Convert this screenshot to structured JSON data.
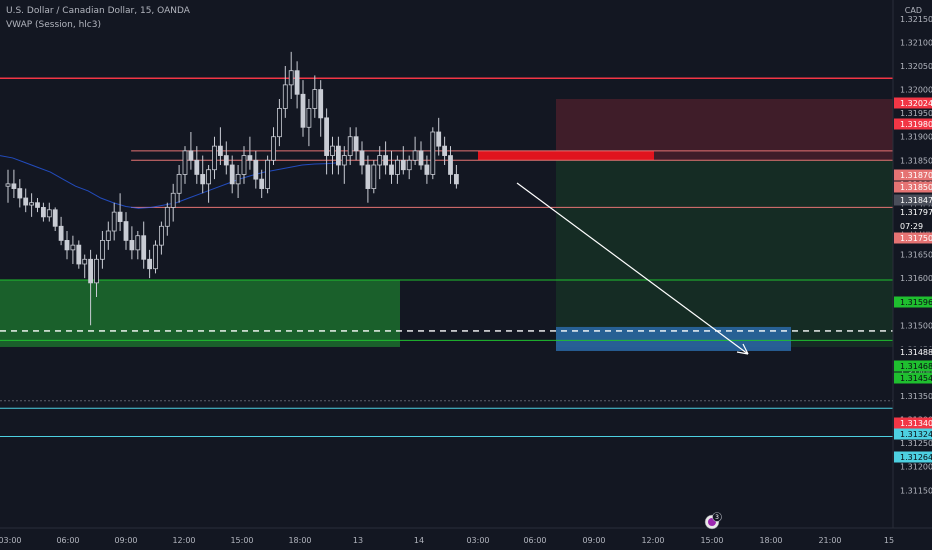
{
  "header": {
    "title": "U.S. Dollar / Canadian Dollar, 15, OANDA",
    "indicator": "VWAP (Session, hlc3)",
    "currency": "CAD"
  },
  "notification_count": "3",
  "colors": {
    "background": "#131722",
    "resistance": "#f23645",
    "support": "#22ab94",
    "candle": "#c9ccd4",
    "vwap": "#2962ff",
    "target": "#2a6aa8"
  },
  "chart_data": {
    "type": "candlestick",
    "symbol": "USDCAD",
    "timeframe": "15",
    "ylim": [
      1.3107,
      1.3219
    ],
    "y_ticks": [
      1.3115,
      1.312,
      1.3125,
      1.313,
      1.3135,
      1.314,
      1.3145,
      1.315,
      1.3155,
      1.316,
      1.3165,
      1.317,
      1.3175,
      1.318,
      1.3185,
      1.319,
      1.3195,
      1.32,
      1.3205,
      1.321,
      1.3215
    ],
    "x_ticks": [
      "03:00",
      "06:00",
      "09:00",
      "12:00",
      "15:00",
      "18:00",
      "13",
      "14",
      "03:00",
      "06:00",
      "09:00",
      "12:00",
      "15:00",
      "18:00",
      "21:00",
      "15"
    ],
    "price_labels": [
      {
        "value": "1.32024",
        "color": "#f23645"
      },
      {
        "value": "1.31980",
        "color": "#f23645"
      },
      {
        "value": "1.31870",
        "color": "#e57373"
      },
      {
        "value": "1.31850",
        "color": "#e57373"
      },
      {
        "value": "1.31847",
        "color": "#4a4e5a"
      },
      {
        "value": "1.31797",
        "color": "#131722"
      },
      {
        "value": "07:29",
        "color": "#131722"
      },
      {
        "value": "1.31750",
        "color": "#e57373"
      },
      {
        "value": "1.31596",
        "color": "#1fbf2f"
      },
      {
        "value": "1.31488",
        "color": "#131722"
      },
      {
        "value": "1.31468",
        "color": "#1fbf2f"
      },
      {
        "value": "1.31454",
        "color": "#1fbf2f"
      },
      {
        "value": "1.31340",
        "color": "#f23645"
      },
      {
        "value": "1.31324",
        "color": "#4dd0e1"
      },
      {
        "value": "1.31264",
        "color": "#4dd0e1"
      }
    ],
    "candles": [
      [
        1.31795,
        1.3183,
        1.3176,
        1.318
      ],
      [
        1.318,
        1.3183,
        1.3177,
        1.3179
      ],
      [
        1.3179,
        1.3181,
        1.3175,
        1.3177
      ],
      [
        1.3177,
        1.3179,
        1.3174,
        1.31755
      ],
      [
        1.31755,
        1.3178,
        1.3173,
        1.3176
      ],
      [
        1.3176,
        1.3177,
        1.3174,
        1.3175
      ],
      [
        1.3175,
        1.3176,
        1.3172,
        1.3173
      ],
      [
        1.3173,
        1.3176,
        1.3172,
        1.31745
      ],
      [
        1.31745,
        1.3175,
        1.317,
        1.3171
      ],
      [
        1.3171,
        1.3173,
        1.3167,
        1.3168
      ],
      [
        1.3168,
        1.317,
        1.3164,
        1.3166
      ],
      [
        1.3166,
        1.3169,
        1.3163,
        1.3167
      ],
      [
        1.3167,
        1.3168,
        1.3162,
        1.3163
      ],
      [
        1.3163,
        1.3165,
        1.316,
        1.3164
      ],
      [
        1.3164,
        1.3166,
        1.315,
        1.3159
      ],
      [
        1.3159,
        1.3165,
        1.3156,
        1.3164
      ],
      [
        1.3164,
        1.317,
        1.3162,
        1.3168
      ],
      [
        1.3168,
        1.3172,
        1.3166,
        1.317
      ],
      [
        1.317,
        1.3176,
        1.3168,
        1.3174
      ],
      [
        1.3174,
        1.3178,
        1.317,
        1.3172
      ],
      [
        1.3172,
        1.3174,
        1.3166,
        1.3168
      ],
      [
        1.3168,
        1.3171,
        1.3164,
        1.3166
      ],
      [
        1.3166,
        1.317,
        1.3164,
        1.3169
      ],
      [
        1.3169,
        1.3172,
        1.3162,
        1.3164
      ],
      [
        1.3164,
        1.3166,
        1.316,
        1.3162
      ],
      [
        1.3162,
        1.3168,
        1.3161,
        1.3167
      ],
      [
        1.3167,
        1.3172,
        1.3165,
        1.3171
      ],
      [
        1.3171,
        1.3176,
        1.3169,
        1.3175
      ],
      [
        1.3175,
        1.318,
        1.3172,
        1.3178
      ],
      [
        1.3178,
        1.3184,
        1.3176,
        1.3182
      ],
      [
        1.3182,
        1.3188,
        1.318,
        1.3187
      ],
      [
        1.3187,
        1.3191,
        1.3183,
        1.3185
      ],
      [
        1.3185,
        1.3188,
        1.318,
        1.3182
      ],
      [
        1.3182,
        1.3186,
        1.3178,
        1.318
      ],
      [
        1.318,
        1.3184,
        1.3176,
        1.3183
      ],
      [
        1.3183,
        1.319,
        1.3181,
        1.3188
      ],
      [
        1.3188,
        1.3192,
        1.3184,
        1.3186
      ],
      [
        1.3186,
        1.3189,
        1.3182,
        1.3184
      ],
      [
        1.3184,
        1.3186,
        1.3178,
        1.318
      ],
      [
        1.318,
        1.3184,
        1.3177,
        1.3182
      ],
      [
        1.3182,
        1.3188,
        1.318,
        1.3186
      ],
      [
        1.3186,
        1.319,
        1.3183,
        1.3185
      ],
      [
        1.3185,
        1.3187,
        1.3179,
        1.3181
      ],
      [
        1.3181,
        1.3183,
        1.3177,
        1.3179
      ],
      [
        1.3179,
        1.3186,
        1.3178,
        1.3185
      ],
      [
        1.3185,
        1.3192,
        1.3184,
        1.319
      ],
      [
        1.319,
        1.3198,
        1.3188,
        1.3196
      ],
      [
        1.3196,
        1.3205,
        1.3194,
        1.3201
      ],
      [
        1.3201,
        1.3208,
        1.3198,
        1.3204
      ],
      [
        1.3204,
        1.3206,
        1.3196,
        1.3199
      ],
      [
        1.3199,
        1.3202,
        1.319,
        1.3192
      ],
      [
        1.3192,
        1.3198,
        1.3188,
        1.3196
      ],
      [
        1.3196,
        1.3203,
        1.3194,
        1.32
      ],
      [
        1.32,
        1.3202,
        1.319,
        1.3194
      ],
      [
        1.3194,
        1.3196,
        1.3182,
        1.3186
      ],
      [
        1.3186,
        1.319,
        1.3182,
        1.3188
      ],
      [
        1.3188,
        1.319,
        1.3182,
        1.3184
      ],
      [
        1.3184,
        1.3188,
        1.318,
        1.3186
      ],
      [
        1.3186,
        1.3192,
        1.3184,
        1.319
      ],
      [
        1.319,
        1.3192,
        1.3185,
        1.3187
      ],
      [
        1.3187,
        1.3189,
        1.3182,
        1.3184
      ],
      [
        1.3184,
        1.3186,
        1.3176,
        1.3179
      ],
      [
        1.3179,
        1.3185,
        1.3178,
        1.3184
      ],
      [
        1.3184,
        1.3188,
        1.3181,
        1.3186
      ],
      [
        1.3186,
        1.3189,
        1.3182,
        1.3184
      ],
      [
        1.3184,
        1.3187,
        1.318,
        1.3182
      ],
      [
        1.3182,
        1.3186,
        1.318,
        1.3185
      ],
      [
        1.3185,
        1.3188,
        1.3182,
        1.3183
      ],
      [
        1.3183,
        1.3186,
        1.3181,
        1.3185
      ],
      [
        1.3185,
        1.319,
        1.3184,
        1.3187
      ],
      [
        1.3187,
        1.3189,
        1.3183,
        1.3184
      ],
      [
        1.3184,
        1.3186,
        1.318,
        1.3182
      ],
      [
        1.3182,
        1.3192,
        1.3181,
        1.3191
      ],
      [
        1.3191,
        1.3194,
        1.3186,
        1.3188
      ],
      [
        1.3188,
        1.319,
        1.3184,
        1.3186
      ],
      [
        1.3186,
        1.3188,
        1.318,
        1.3182
      ],
      [
        1.3182,
        1.3184,
        1.3179,
        1.318
      ]
    ],
    "vwap": [
      1.3186,
      1.31855,
      1.31845,
      1.31835,
      1.31825,
      1.3181,
      1.31795,
      1.31785,
      1.3177,
      1.3176,
      1.31752,
      1.31748,
      1.3175,
      1.31755,
      1.3176,
      1.3177,
      1.3178,
      1.3179,
      1.318,
      1.3181,
      1.31818,
      1.31825,
      1.3183,
      1.31835,
      1.3184,
      1.31842,
      1.31843,
      1.31845
    ],
    "levels": [
      {
        "price": 1.32024,
        "color": "#f23645",
        "width": 1.5
      },
      {
        "price": 1.3187,
        "color": "#e57373",
        "width": 1,
        "from_candle": 29
      },
      {
        "price": 1.3185,
        "color": "#e57373",
        "width": 1,
        "from_candle": 29
      },
      {
        "price": 1.3175,
        "color": "#e57373",
        "width": 1,
        "from_candle": 29
      },
      {
        "price": 1.31596,
        "color": "#1fbf2f",
        "width": 1
      },
      {
        "price": 1.31468,
        "color": "#1fbf2f",
        "width": 1
      },
      {
        "price": 1.3134,
        "color": "#5d606b",
        "width": 1,
        "dash": true
      },
      {
        "price": 1.31324,
        "color": "#4dd0e1",
        "width": 1
      },
      {
        "price": 1.31264,
        "color": "#4dd0e1",
        "width": 1
      }
    ],
    "current_price": 1.31488,
    "demand_zone": {
      "top": 1.31596,
      "bottom": 1.31454
    },
    "entry_zone": {
      "top": 1.3187,
      "bottom": 1.3185
    },
    "short_position": {
      "stop": 1.3198,
      "entry": 1.3185,
      "target": 1.31454
    },
    "target_zone": {
      "top": 1.31488,
      "bottom": 1.31454
    },
    "grid": false,
    "legend": "none"
  }
}
